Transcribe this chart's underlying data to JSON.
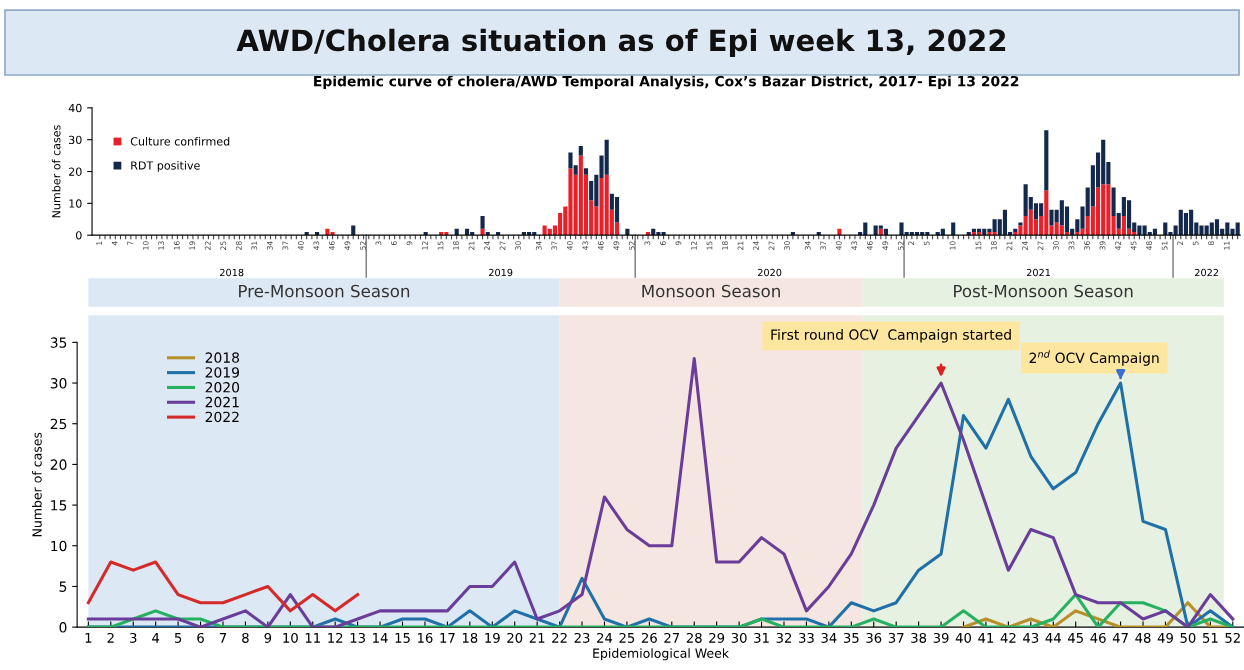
{
  "chart_data": [
    {
      "type": "bar",
      "stacked": true,
      "title": "AWD/Cholera situation as of Epi week 13, 2022",
      "subtitle": "Epidemic curve of cholera/AWD Temporal Analysis, Cox’s Bazar District, 2017- Epi 13 2022",
      "ylabel": "Number of cases",
      "ylim": [
        0,
        40
      ],
      "yticks": [
        0,
        10,
        20,
        30,
        40
      ],
      "legend": "top left",
      "annotations": [
        "2018",
        "2019",
        "2020",
        "2021",
        "2022"
      ],
      "categories": [
        "1",
        null,
        null,
        "4",
        null,
        null,
        "7",
        null,
        null,
        "10",
        null,
        null,
        "13",
        null,
        null,
        "16",
        null,
        null,
        "19",
        null,
        null,
        "22",
        null,
        null,
        "25",
        null,
        null,
        "28",
        null,
        null,
        "31",
        null,
        null,
        "34",
        null,
        null,
        "37",
        null,
        null,
        "40",
        null,
        null,
        "43",
        null,
        null,
        "46",
        null,
        null,
        "49",
        null,
        null,
        "52",
        null,
        null,
        "3",
        null,
        null,
        "6",
        null,
        null,
        "9",
        null,
        null,
        "12",
        null,
        null,
        "15",
        null,
        null,
        "18",
        null,
        null,
        "21",
        null,
        null,
        "24",
        null,
        null,
        "27",
        null,
        null,
        "30",
        null,
        null,
        null,
        "34",
        null,
        null,
        "37",
        null,
        null,
        "40",
        null,
        null,
        "43",
        null,
        null,
        "46",
        null,
        null,
        "49",
        null,
        null,
        "52",
        null,
        null,
        "3",
        null,
        null,
        "6",
        null,
        null,
        "9",
        null,
        null,
        "12",
        null,
        null,
        "15",
        null,
        null,
        "18",
        null,
        null,
        "21",
        null,
        null,
        "24",
        null,
        null,
        "27",
        null,
        null,
        "30",
        null,
        null,
        null,
        "34",
        null,
        null,
        "37",
        null,
        null,
        "40",
        null,
        null,
        "43",
        null,
        null,
        "46",
        null,
        null,
        "49",
        null,
        null,
        "52",
        null,
        "2",
        null,
        null,
        "5",
        null,
        null,
        null,
        null,
        "10",
        null,
        null,
        null,
        null,
        "15",
        null,
        null,
        "18",
        null,
        null,
        "21",
        null,
        null,
        "24",
        null,
        null,
        "27",
        null,
        null,
        "30",
        null,
        null,
        "33",
        null,
        null,
        "36",
        null,
        null,
        "39",
        null,
        null,
        "42",
        null,
        null,
        "45",
        null,
        null,
        "48",
        null,
        null,
        "51",
        null,
        null,
        "2",
        null,
        null,
        "5",
        null,
        null,
        "8",
        null,
        null,
        "11",
        null,
        null
      ],
      "series": [
        {
          "name": "Culture confirmed",
          "color": "#e8202a",
          "values": [
            0,
            0,
            0,
            0,
            0,
            0,
            0,
            0,
            0,
            0,
            0,
            0,
            0,
            0,
            0,
            0,
            0,
            0,
            0,
            0,
            0,
            0,
            0,
            0,
            0,
            0,
            0,
            0,
            0,
            0,
            0,
            0,
            0,
            0,
            0,
            0,
            0,
            0,
            0,
            0,
            0,
            0,
            0,
            0,
            2,
            1,
            0,
            0,
            0,
            0,
            0,
            0,
            0,
            0,
            0,
            0,
            0,
            0,
            0,
            0,
            0,
            0,
            0,
            0,
            0,
            0,
            1,
            1,
            0,
            0,
            0,
            0,
            0,
            0,
            2,
            0,
            0,
            0,
            0,
            0,
            0,
            0,
            0,
            0,
            0,
            0,
            3,
            2,
            3,
            7,
            9,
            21,
            19,
            25,
            19,
            11,
            9,
            18,
            19,
            8,
            4,
            0,
            0,
            0,
            0,
            0,
            1,
            0,
            0,
            0,
            0,
            0,
            0,
            0,
            0,
            0,
            0,
            0,
            0,
            0,
            0,
            0,
            0,
            0,
            0,
            0,
            0,
            0,
            0,
            0,
            0,
            0,
            0,
            0,
            0,
            0,
            0,
            0,
            0,
            0,
            0,
            0,
            0,
            2,
            0,
            0,
            0,
            0,
            0,
            0,
            0,
            2,
            0,
            0,
            0,
            0,
            0,
            0,
            0,
            0,
            0,
            0,
            0,
            0,
            0,
            0,
            0,
            0,
            0,
            1,
            1,
            0,
            1,
            1,
            0,
            0,
            0,
            1,
            3,
            6,
            8,
            5,
            6,
            14,
            3,
            4,
            3,
            1,
            0,
            1,
            2,
            6,
            9,
            15,
            16,
            16,
            6,
            2,
            6,
            2,
            1,
            0,
            0,
            0,
            0,
            0,
            0,
            0,
            0,
            0,
            0,
            0,
            0,
            0,
            0,
            0,
            0,
            0,
            0,
            0,
            0
          ]
        },
        {
          "name": "RDT positive",
          "color": "#14284b",
          "values": [
            0,
            0,
            0,
            0,
            0,
            0,
            0,
            0,
            0,
            0,
            0,
            0,
            0,
            0,
            0,
            0,
            0,
            0,
            0,
            0,
            0,
            0,
            0,
            0,
            0,
            0,
            0,
            0,
            0,
            0,
            0,
            0,
            0,
            0,
            0,
            0,
            0,
            0,
            0,
            0,
            1,
            0,
            1,
            0,
            0,
            0,
            0,
            0,
            0,
            3,
            0,
            0,
            0,
            0,
            0,
            0,
            0,
            0,
            0,
            0,
            0,
            0,
            0,
            1,
            0,
            0,
            0,
            0,
            0,
            2,
            0,
            2,
            1,
            0,
            4,
            1,
            0,
            1,
            0,
            0,
            0,
            0,
            1,
            1,
            1,
            0,
            0,
            0,
            0,
            0,
            0,
            5,
            3,
            3,
            2,
            6,
            10,
            7,
            11,
            5,
            8,
            0,
            2,
            0,
            0,
            0,
            0,
            2,
            1,
            1,
            0,
            0,
            0,
            0,
            0,
            0,
            0,
            0,
            0,
            0,
            0,
            0,
            0,
            0,
            0,
            0,
            0,
            0,
            0,
            0,
            0,
            0,
            0,
            0,
            1,
            0,
            0,
            0,
            0,
            1,
            0,
            0,
            0,
            0,
            0,
            0,
            0,
            1,
            4,
            0,
            3,
            1,
            2,
            0,
            0,
            4,
            1,
            1,
            1,
            1,
            1,
            0,
            1,
            2,
            0,
            4,
            0,
            0,
            1,
            1,
            1,
            2,
            1,
            4,
            5,
            8,
            1,
            1,
            1,
            10,
            4,
            5,
            4,
            19,
            5,
            4,
            8,
            8,
            2,
            4,
            7,
            9,
            13,
            11,
            14,
            7,
            9,
            5,
            6,
            9,
            3,
            3,
            3,
            1,
            2,
            0,
            4,
            1,
            3,
            8,
            7,
            8,
            4,
            3,
            3,
            4,
            5,
            2,
            4,
            2,
            4
          ]
        }
      ]
    },
    {
      "type": "line",
      "xlabel": "Epidemiological Week",
      "ylabel": "Number of cases",
      "xlim": [
        0.5,
        52.5
      ],
      "xticks": [
        1,
        2,
        3,
        4,
        5,
        6,
        7,
        8,
        9,
        10,
        11,
        12,
        13,
        14,
        15,
        16,
        17,
        18,
        19,
        20,
        21,
        22,
        23,
        24,
        25,
        26,
        27,
        28,
        29,
        30,
        31,
        32,
        33,
        34,
        35,
        36,
        37,
        38,
        39,
        40,
        41,
        42,
        43,
        44,
        45,
        46,
        47,
        48,
        49,
        50,
        51,
        52
      ],
      "ylim": [
        0,
        35
      ],
      "yticks": [
        0,
        5,
        10,
        15,
        20,
        25,
        30,
        35
      ],
      "legend": "top left",
      "marker": "none",
      "line_style": "solid",
      "x": [
        1,
        2,
        3,
        4,
        5,
        6,
        7,
        8,
        9,
        10,
        11,
        12,
        13,
        14,
        15,
        16,
        17,
        18,
        19,
        20,
        21,
        22,
        23,
        24,
        25,
        26,
        27,
        28,
        29,
        30,
        31,
        32,
        33,
        34,
        35,
        36,
        37,
        38,
        39,
        40,
        41,
        42,
        43,
        44,
        45,
        46,
        47,
        48,
        49,
        50,
        51,
        52
      ],
      "bands": [
        {
          "axis": "x",
          "from": 1,
          "to": 22,
          "label": "Pre-Monsoon Season",
          "color": "#dce8f4"
        },
        {
          "axis": "x",
          "from": 22,
          "to": 35.5,
          "label": "Monsoon Season",
          "color": "#f6e6e2"
        },
        {
          "axis": "x",
          "from": 35.5,
          "to": 51.6,
          "label": "Post-Monsoon Season",
          "color": "#e6f1e2"
        }
      ],
      "annotations": [
        {
          "text": "First round OCV  Campaign started",
          "x": 39,
          "y": 30
        },
        {
          "text": "2$^{nd}$ OCV Campaign",
          "x": 47,
          "y": 30
        }
      ],
      "series": [
        {
          "name": "2018",
          "color": "#b8902a",
          "values": [
            null,
            null,
            null,
            null,
            null,
            null,
            null,
            null,
            null,
            null,
            null,
            null,
            null,
            null,
            null,
            null,
            null,
            null,
            null,
            null,
            null,
            null,
            null,
            null,
            null,
            null,
            null,
            null,
            null,
            null,
            null,
            null,
            null,
            null,
            null,
            null,
            null,
            null,
            null,
            0,
            1,
            0,
            1,
            0,
            2,
            1,
            0,
            0,
            0,
            3,
            0,
            0
          ]
        },
        {
          "name": "2019",
          "color": "#1f6fa8",
          "values": [
            0,
            0,
            0,
            0,
            0,
            0,
            0,
            0,
            0,
            0,
            0,
            1,
            0,
            0,
            1,
            1,
            0,
            2,
            0,
            2,
            1,
            0,
            6,
            1,
            0,
            1,
            0,
            0,
            0,
            0,
            1,
            1,
            1,
            0,
            3,
            2,
            3,
            7,
            9,
            26,
            22,
            28,
            21,
            17,
            19,
            25,
            30,
            13,
            12,
            0,
            2,
            0
          ]
        },
        {
          "name": "2020",
          "color": "#27b060",
          "values": [
            0,
            0,
            1,
            2,
            1,
            1,
            0,
            0,
            0,
            0,
            0,
            0,
            0,
            0,
            0,
            0,
            0,
            0,
            0,
            0,
            0,
            0,
            0,
            0,
            0,
            0,
            0,
            0,
            0,
            0,
            1,
            0,
            0,
            0,
            0,
            1,
            0,
            0,
            0,
            2,
            0,
            0,
            0,
            1,
            4,
            0,
            3,
            3,
            2,
            0,
            1,
            0
          ]
        },
        {
          "name": "2021",
          "color": "#6a3d9a",
          "values": [
            1,
            1,
            1,
            1,
            1,
            0,
            1,
            2,
            0,
            4,
            0,
            0,
            1,
            2,
            2,
            2,
            2,
            5,
            5,
            8,
            1,
            2,
            4,
            16,
            12,
            10,
            10,
            33,
            8,
            8,
            11,
            9,
            2,
            5,
            9,
            15,
            22,
            26,
            30,
            23,
            15,
            7,
            12,
            11,
            4,
            3,
            3,
            1,
            2,
            0,
            4,
            1
          ]
        },
        {
          "name": "2022",
          "color": "#d42a2a",
          "x": [
            1,
            2,
            3,
            4,
            5,
            6,
            7,
            8,
            9,
            10,
            11,
            12,
            13
          ],
          "values": [
            3,
            8,
            7,
            8,
            4,
            3,
            3,
            4,
            5,
            2,
            4,
            2,
            4
          ]
        }
      ]
    }
  ]
}
